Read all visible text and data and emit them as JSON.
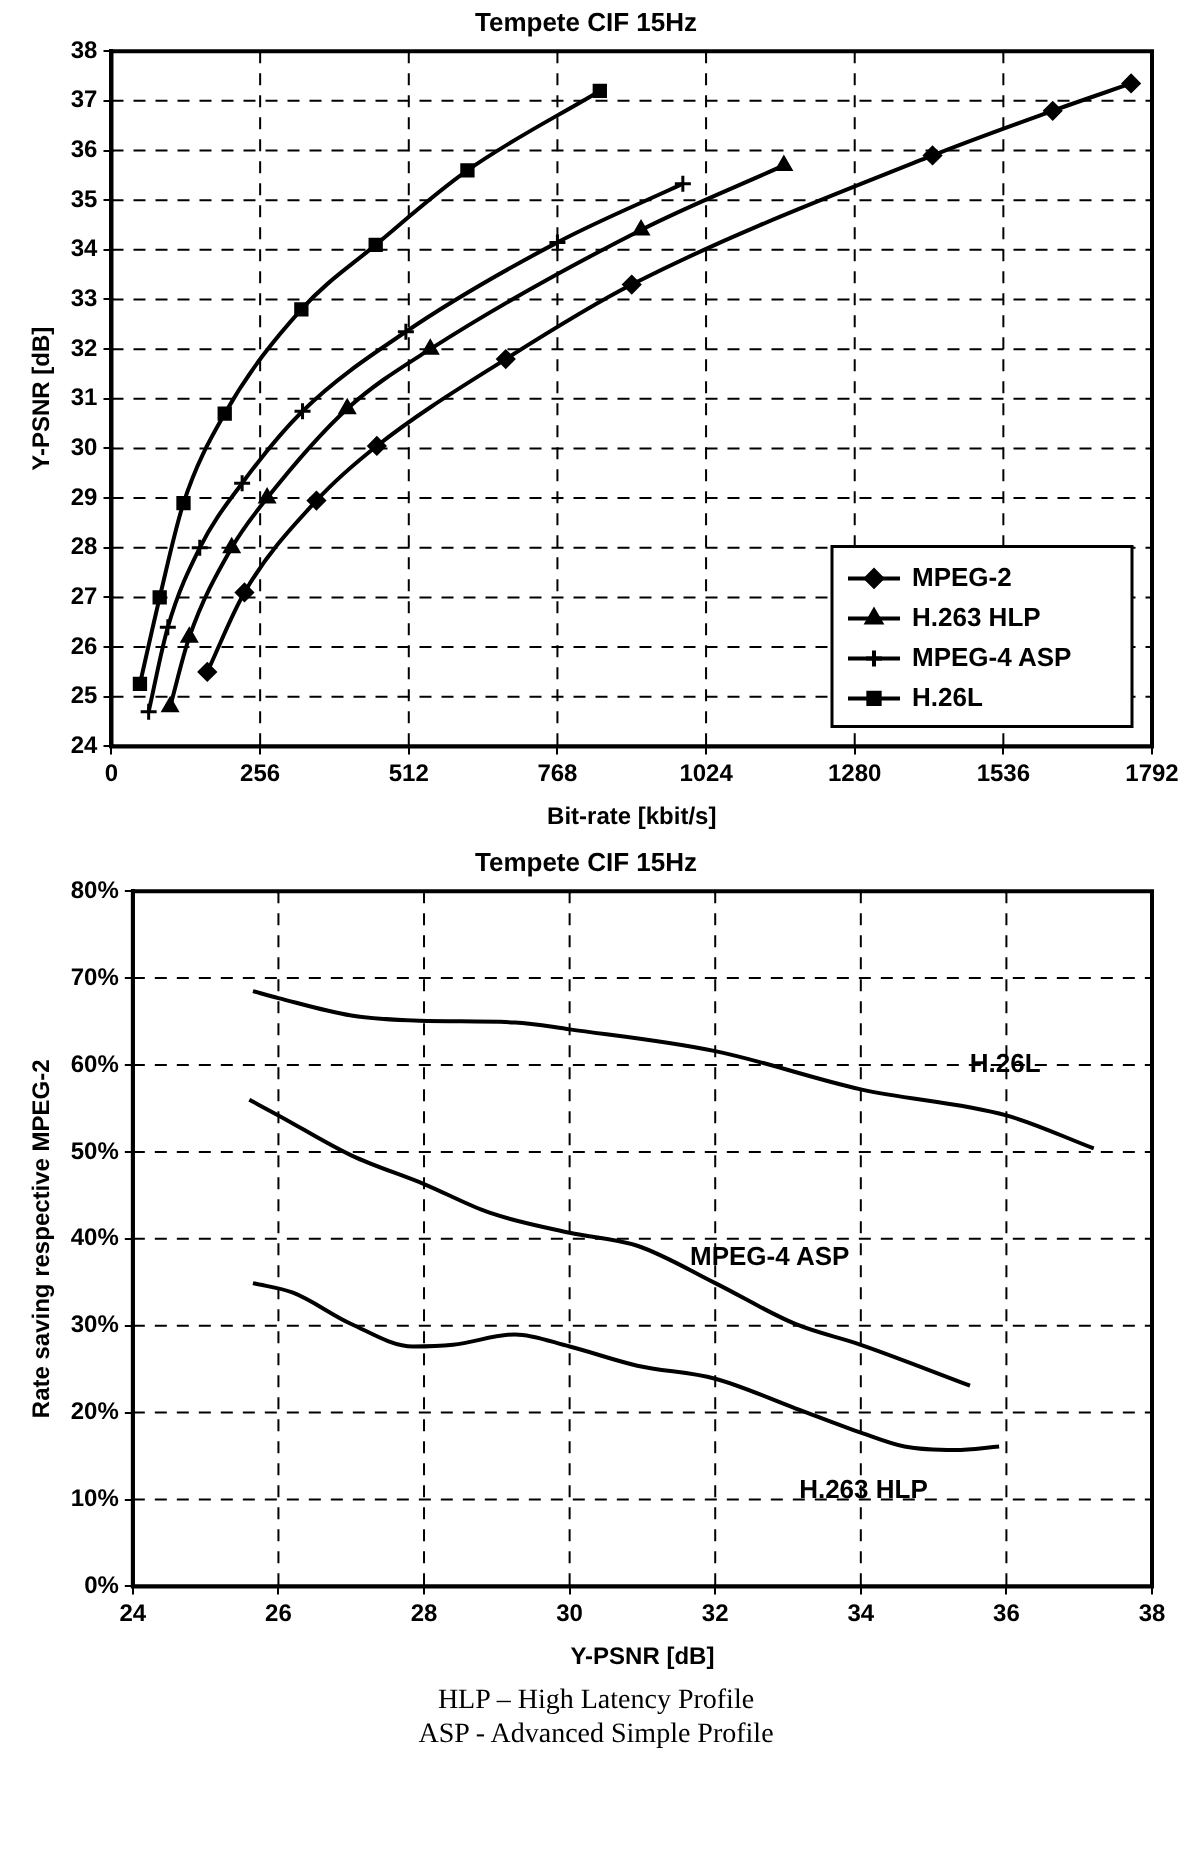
{
  "chart_data": [
    {
      "type": "line",
      "title": "Tempete CIF 15Hz",
      "xlabel": "Bit-rate [kbit/s]",
      "ylabel": "Y-PSNR [dB]",
      "xlim": [
        0,
        1792
      ],
      "xticks": [
        0,
        256,
        512,
        768,
        1024,
        1280,
        1536,
        1792
      ],
      "ylim": [
        24,
        38
      ],
      "yticks": [
        24,
        25,
        26,
        27,
        28,
        29,
        30,
        31,
        32,
        33,
        34,
        35,
        36,
        37,
        38
      ],
      "grid": true,
      "legend": "bottom right",
      "line_style": "solid",
      "series": [
        {
          "name": "MPEG-2",
          "color": "#000000",
          "marker": "diamond",
          "x": [
            165,
            229,
            353,
            457,
            679,
            896,
            1414,
            1621,
            1756
          ],
          "values": [
            25.5,
            27.1,
            28.95,
            30.05,
            31.8,
            33.3,
            35.9,
            36.8,
            37.35
          ]
        },
        {
          "name": "H.263 HLP",
          "color": "#000000",
          "marker": "triangle",
          "x": [
            101,
            134,
            207,
            268,
            406,
            549,
            912,
            1158
          ],
          "values": [
            24.8,
            26.2,
            28.0,
            29.0,
            30.8,
            32.0,
            34.4,
            35.7
          ]
        },
        {
          "name": "MPEG-4 ASP",
          "color": "#000000",
          "marker": "cross",
          "x": [
            64,
            97,
            152,
            225,
            329,
            507,
            768,
            984
          ],
          "values": [
            24.7,
            26.4,
            28.0,
            29.3,
            30.75,
            32.35,
            34.15,
            35.33
          ]
        },
        {
          "name": "H.26L",
          "color": "#000000",
          "marker": "square",
          "x": [
            49,
            83,
            124,
            195,
            327,
            455,
            613,
            841
          ],
          "values": [
            25.26,
            27.0,
            28.9,
            30.7,
            32.8,
            34.1,
            35.6,
            37.2
          ]
        }
      ]
    },
    {
      "type": "line",
      "title": "Tempete CIF 15Hz",
      "xlabel": "Y-PSNR [dB]",
      "ylabel": "Rate saving respective MPEG-2",
      "xlim": [
        24,
        38
      ],
      "xticks": [
        24,
        26,
        28,
        30,
        32,
        34,
        36,
        38
      ],
      "ylim": [
        0,
        80
      ],
      "yticks": [
        {
          "value": 0,
          "label": "0%"
        },
        {
          "value": 10,
          "label": "10%"
        },
        {
          "value": 20,
          "label": "20%"
        },
        {
          "value": 30,
          "label": "30%"
        },
        {
          "value": 40,
          "label": "40%"
        },
        {
          "value": 50,
          "label": "50%"
        },
        {
          "value": 60,
          "label": "60%"
        },
        {
          "value": 70,
          "label": "70%"
        },
        {
          "value": 80,
          "label": "80%"
        }
      ],
      "grid": true,
      "legend": false,
      "marker": "none",
      "line_style": "solid",
      "annotations": [
        "HLP – High Latency Profile",
        "ASP - Advanced Simple Profile"
      ],
      "series": [
        {
          "name": "H.26L",
          "color": "#000000",
          "x": [
            25.65,
            26,
            27,
            27.94,
            29.25,
            30,
            32,
            34,
            36,
            37.2
          ],
          "values": [
            68.5,
            67.7,
            65.7,
            65.1,
            64.9,
            64.1,
            61.6,
            57.2,
            54.2,
            50.4
          ]
        },
        {
          "name": "MPEG-4 ASP",
          "color": "#000000",
          "x": [
            25.6,
            26,
            27,
            28,
            28.9,
            30,
            30.93,
            32,
            33.1,
            34,
            35.5
          ],
          "values": [
            56,
            54.2,
            49.6,
            46.3,
            43,
            40.7,
            39.2,
            34.9,
            30.2,
            27.8,
            23.1
          ]
        },
        {
          "name": "H.263 HLP",
          "color": "#000000",
          "x": [
            25.65,
            26.2,
            27,
            27.85,
            28.4,
            29.25,
            30,
            30.93,
            32,
            33.1,
            34,
            34.6,
            35.3,
            35.9
          ],
          "values": [
            34.9,
            33.8,
            30.2,
            27.6,
            27.8,
            29,
            27.6,
            25.4,
            23.9,
            20.5,
            17.7,
            16.1,
            15.7,
            16.1
          ]
        }
      ]
    }
  ]
}
